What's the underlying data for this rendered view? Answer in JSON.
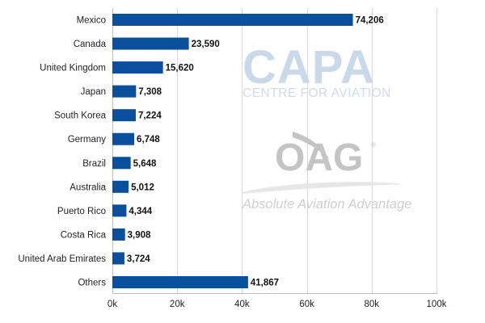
{
  "chart_data": {
    "type": "bar",
    "orientation": "horizontal",
    "categories": [
      "Mexico",
      "Canada",
      "United Kingdom",
      "Japan",
      "South Korea",
      "Germany",
      "Brazil",
      "Australia",
      "Puerto Rico",
      "Costa Rica",
      "United Arab Emirates",
      "Others"
    ],
    "values": [
      74206,
      23590,
      15620,
      7308,
      7224,
      6748,
      5648,
      5012,
      4344,
      3908,
      3724,
      41867
    ],
    "value_labels": [
      "74,206",
      "23,590",
      "15,620",
      "7,308",
      "7,224",
      "6,748",
      "5,648",
      "5,012",
      "4,344",
      "3,908",
      "3,724",
      "41,867"
    ],
    "title": "",
    "xlabel": "",
    "ylabel": "",
    "xlim": [
      0,
      100000
    ],
    "x_ticks": [
      0,
      20000,
      40000,
      60000,
      80000,
      100000
    ],
    "x_tick_labels": [
      "0k",
      "20k",
      "40k",
      "60k",
      "80k",
      "100k"
    ],
    "grid": true,
    "bar_color": "#0a4f9c",
    "grid_color": "#d9d9d9"
  },
  "watermarks": {
    "capa_title": "CAPA",
    "capa_subtitle": "CENTRE FOR AVIATION",
    "oag_title": "OAG",
    "oag_registered": "®",
    "oag_tagline": "Absolute Aviation Advantage",
    "capa_color": "#c9d9ea",
    "oag_color": "#c4c4c4"
  }
}
